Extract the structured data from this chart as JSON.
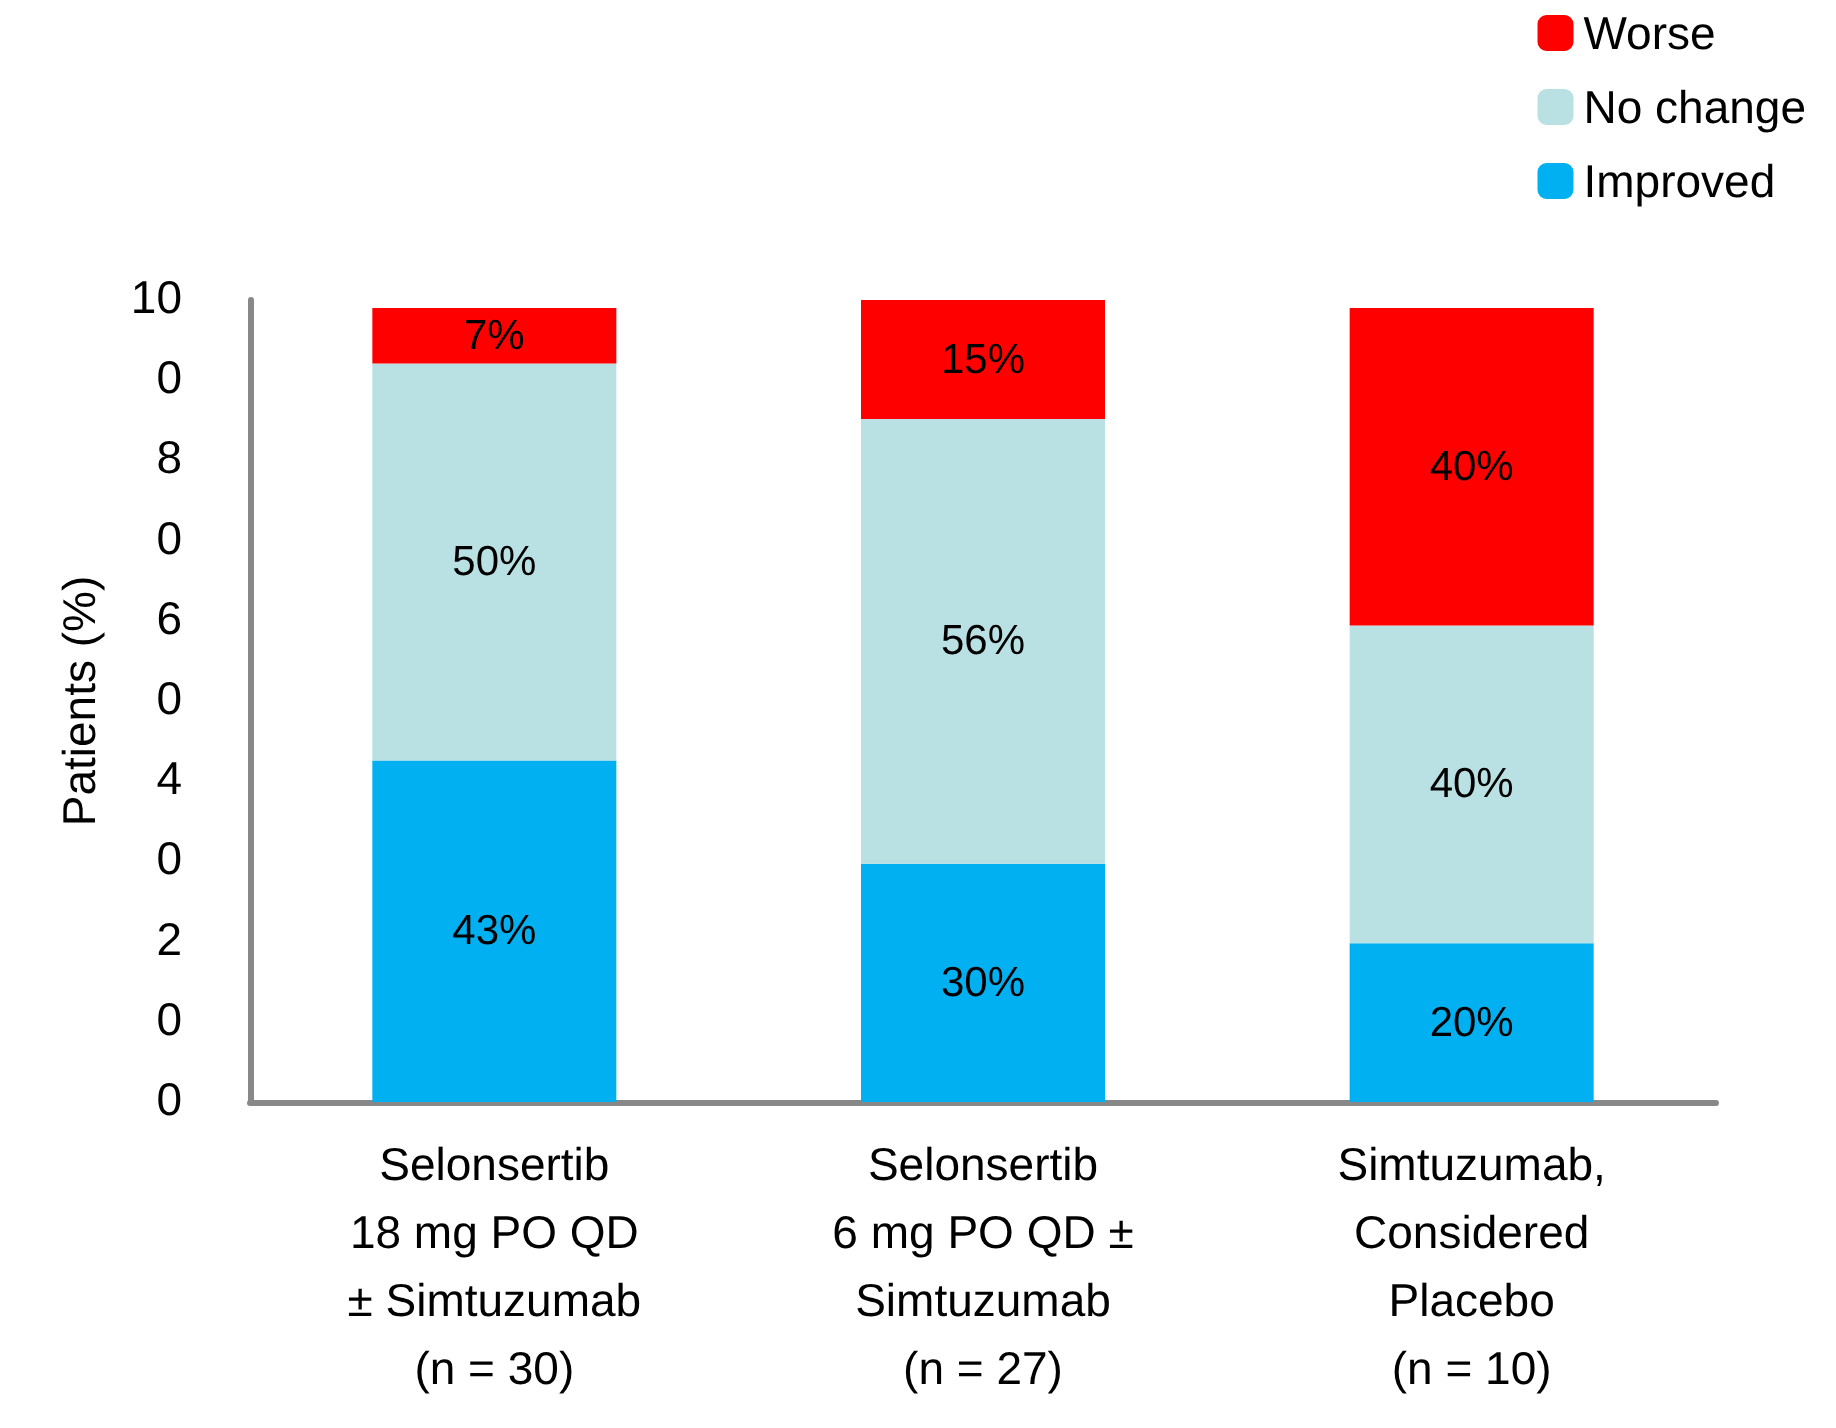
{
  "chart_data": {
    "type": "bar",
    "stacked": true,
    "ylabel": "Patients (%)",
    "categories": [
      "Selonsertib\n18 mg PO QD\n± Simtuzumab\n(n = 30)",
      "Selonsertib\n6 mg PO QD ±\nSimtuzumab\n(n = 27)",
      "Simtuzumab,\nConsidered\nPlacebo\n(n = 10)"
    ],
    "series": [
      {
        "name": "Improved",
        "color": "#00b0f0",
        "values": [
          43,
          30,
          20
        ],
        "value_labels": [
          "43%",
          "30%",
          "20%"
        ]
      },
      {
        "name": "No change",
        "color": "#b9e0e3",
        "values": [
          50,
          56,
          40
        ],
        "value_labels": [
          "50%",
          "56%",
          "40%"
        ]
      },
      {
        "name": "Worse",
        "color": "#ff0000",
        "values": [
          7,
          15,
          40
        ],
        "value_labels": [
          "7%",
          "15%",
          "40%"
        ]
      }
    ],
    "annotations": [
      "10",
      "0",
      "8",
      "0",
      "6",
      "0",
      "4",
      "0",
      "2",
      "0",
      "0"
    ],
    "grid": false,
    "legend": "top right"
  }
}
